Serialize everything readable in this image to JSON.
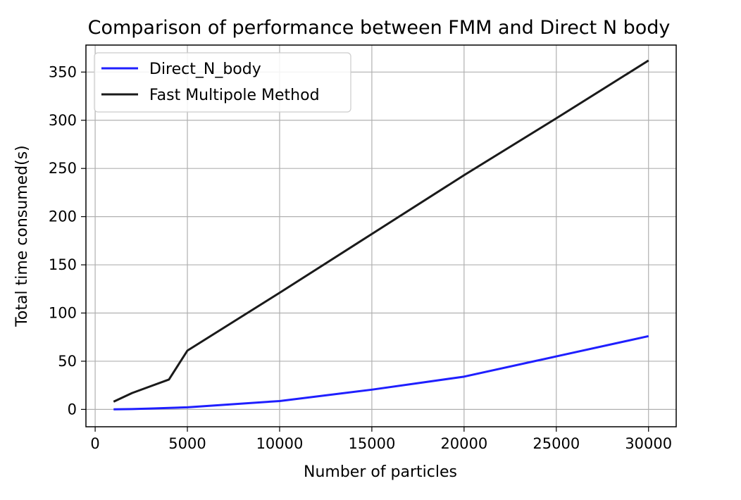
{
  "chart_data": {
    "type": "line",
    "title": "Comparison of performance between FMM and Direct N body",
    "xlabel": "Number of particles",
    "ylabel": "Total time consumed(s)",
    "xlim": [
      -500,
      31500
    ],
    "ylim": [
      -18,
      378
    ],
    "xticks": [
      0,
      5000,
      10000,
      15000,
      20000,
      25000,
      30000
    ],
    "yticks": [
      0,
      50,
      100,
      150,
      200,
      250,
      300,
      350
    ],
    "grid": true,
    "legend_position": "upper left",
    "series": [
      {
        "name": "Direct_N_body",
        "color": "#1f1fff",
        "x": [
          1000,
          2000,
          3000,
          4000,
          5000,
          10000,
          15000,
          20000,
          25000,
          30000
        ],
        "y": [
          0.1,
          0.4,
          0.9,
          1.5,
          2.2,
          8.7,
          20.5,
          34,
          55,
          76
        ]
      },
      {
        "name": "Fast Multipole Method",
        "color": "#1a1a1a",
        "x": [
          1000,
          2000,
          3000,
          4000,
          5000,
          10000,
          15000,
          20000,
          25000,
          30000
        ],
        "y": [
          8,
          17,
          24,
          31,
          61,
          121,
          182,
          243,
          302,
          362
        ]
      }
    ]
  }
}
